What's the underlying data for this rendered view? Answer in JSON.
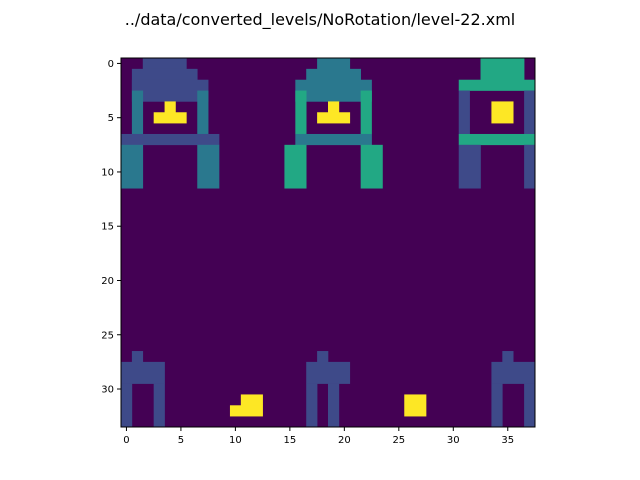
{
  "chart_data": {
    "type": "heatmap",
    "title": "../data/converted_levels/NoRotation/level-22.xml",
    "rows": 34,
    "cols": 38,
    "x_ticks": [
      0,
      5,
      10,
      15,
      20,
      25,
      30,
      35
    ],
    "y_ticks": [
      0,
      5,
      10,
      15,
      20,
      25,
      30
    ],
    "colormap": "viridis",
    "background_value": 0,
    "palette": {
      "0": "#440154",
      "1": "#3e4a89",
      "2": "#2a788e",
      "3": "#22a884",
      "4": "#fde725"
    },
    "cells": [
      {
        "v": 1,
        "r0": 0,
        "r1": 1,
        "c0": 2,
        "c1": 5
      },
      {
        "v": 1,
        "r0": 1,
        "r1": 2,
        "c0": 1,
        "c1": 6
      },
      {
        "v": 1,
        "r0": 2,
        "r1": 3,
        "c0": 1,
        "c1": 7
      },
      {
        "v": 2,
        "r0": 3,
        "r1": 6,
        "c0": 1,
        "c1": 1
      },
      {
        "v": 2,
        "r0": 3,
        "r1": 6,
        "c0": 7,
        "c1": 7
      },
      {
        "v": 4,
        "r0": 4,
        "r1": 4,
        "c0": 4,
        "c1": 4
      },
      {
        "v": 4,
        "r0": 5,
        "r1": 5,
        "c0": 3,
        "c1": 5
      },
      {
        "v": 1,
        "r0": 7,
        "r1": 7,
        "c0": 0,
        "c1": 8
      },
      {
        "v": 2,
        "r0": 8,
        "r1": 11,
        "c0": 0,
        "c1": 1
      },
      {
        "v": 2,
        "r0": 8,
        "r1": 11,
        "c0": 7,
        "c1": 8
      },
      {
        "v": 2,
        "r0": 0,
        "r1": 1,
        "c0": 18,
        "c1": 20
      },
      {
        "v": 2,
        "r0": 1,
        "r1": 2,
        "c0": 17,
        "c1": 21
      },
      {
        "v": 2,
        "r0": 2,
        "r1": 3,
        "c0": 16,
        "c1": 22
      },
      {
        "v": 3,
        "r0": 3,
        "r1": 6,
        "c0": 16,
        "c1": 16
      },
      {
        "v": 3,
        "r0": 3,
        "r1": 6,
        "c0": 22,
        "c1": 22
      },
      {
        "v": 4,
        "r0": 4,
        "r1": 4,
        "c0": 19,
        "c1": 19
      },
      {
        "v": 4,
        "r0": 5,
        "r1": 5,
        "c0": 18,
        "c1": 20
      },
      {
        "v": 2,
        "r0": 7,
        "r1": 7,
        "c0": 16,
        "c1": 22
      },
      {
        "v": 3,
        "r0": 8,
        "r1": 11,
        "c0": 15,
        "c1": 16
      },
      {
        "v": 3,
        "r0": 8,
        "r1": 11,
        "c0": 22,
        "c1": 23
      },
      {
        "v": 3,
        "r0": 0,
        "r1": 1,
        "c0": 33,
        "c1": 36
      },
      {
        "v": 3,
        "r0": 2,
        "r1": 2,
        "c0": 31,
        "c1": 37
      },
      {
        "v": 1,
        "r0": 3,
        "r1": 6,
        "c0": 31,
        "c1": 31
      },
      {
        "v": 1,
        "r0": 3,
        "r1": 6,
        "c0": 37,
        "c1": 37
      },
      {
        "v": 4,
        "r0": 4,
        "r1": 5,
        "c0": 34,
        "c1": 35
      },
      {
        "v": 3,
        "r0": 7,
        "r1": 7,
        "c0": 31,
        "c1": 37
      },
      {
        "v": 1,
        "r0": 8,
        "r1": 11,
        "c0": 31,
        "c1": 32
      },
      {
        "v": 1,
        "r0": 8,
        "r1": 11,
        "c0": 37,
        "c1": 37
      },
      {
        "v": 1,
        "r0": 27,
        "r1": 27,
        "c0": 1,
        "c1": 1
      },
      {
        "v": 1,
        "r0": 28,
        "r1": 29,
        "c0": 0,
        "c1": 3
      },
      {
        "v": 1,
        "r0": 30,
        "r1": 33,
        "c0": 0,
        "c1": 0
      },
      {
        "v": 1,
        "r0": 30,
        "r1": 33,
        "c0": 3,
        "c1": 3
      },
      {
        "v": 1,
        "r0": 27,
        "r1": 27,
        "c0": 18,
        "c1": 18
      },
      {
        "v": 1,
        "r0": 28,
        "r1": 29,
        "c0": 17,
        "c1": 20
      },
      {
        "v": 1,
        "r0": 30,
        "r1": 33,
        "c0": 17,
        "c1": 17
      },
      {
        "v": 1,
        "r0": 30,
        "r1": 33,
        "c0": 19,
        "c1": 19
      },
      {
        "v": 1,
        "r0": 27,
        "r1": 27,
        "c0": 35,
        "c1": 35
      },
      {
        "v": 1,
        "r0": 28,
        "r1": 29,
        "c0": 34,
        "c1": 37
      },
      {
        "v": 1,
        "r0": 30,
        "r1": 33,
        "c0": 34,
        "c1": 34
      },
      {
        "v": 1,
        "r0": 30,
        "r1": 33,
        "c0": 37,
        "c1": 37
      },
      {
        "v": 4,
        "r0": 31,
        "r1": 31,
        "c0": 11,
        "c1": 12
      },
      {
        "v": 4,
        "r0": 32,
        "r1": 32,
        "c0": 10,
        "c1": 12
      },
      {
        "v": 4,
        "r0": 31,
        "r1": 32,
        "c0": 26,
        "c1": 27
      }
    ]
  }
}
